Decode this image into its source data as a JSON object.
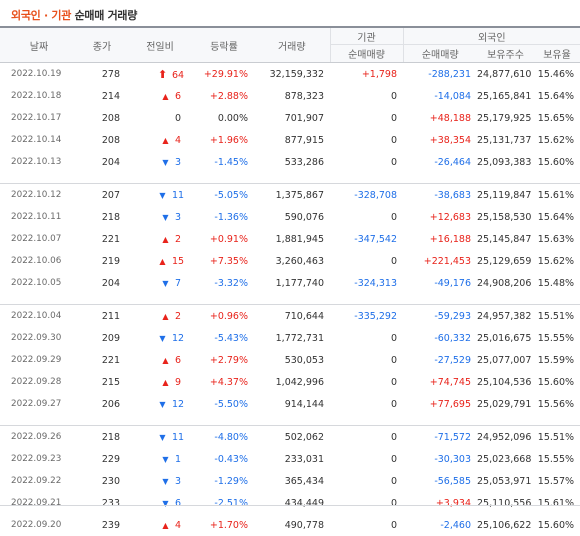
{
  "title": {
    "part1": "외국인",
    "dot": "·",
    "part2": "기관",
    "part3": "순매매 거래량"
  },
  "headers": {
    "date": "날짜",
    "close": "종가",
    "change": "전일비",
    "rate": "등락률",
    "volume": "거래량",
    "inst_group": "기관",
    "foreign_group": "외국인",
    "inst_net": "순매매량",
    "foreign_net": "순매매량",
    "foreign_holdings": "보유주수",
    "foreign_ratio": "보유율"
  },
  "colors": {
    "up": "#e8231b",
    "down": "#1f6fe8",
    "accent": "#e8501b"
  },
  "groups": [
    [
      {
        "date": "2022.10.19",
        "close": "278",
        "dir": "upper",
        "change": "64",
        "rate": "+29.91%",
        "volume": "32,159,332",
        "inst": "+1,798",
        "foreign": "-288,231",
        "holdings": "24,877,610",
        "ratio": "15.46%"
      },
      {
        "date": "2022.10.18",
        "close": "214",
        "dir": "up",
        "change": "6",
        "rate": "+2.88%",
        "volume": "878,323",
        "inst": "0",
        "foreign": "-14,084",
        "holdings": "25,165,841",
        "ratio": "15.64%"
      },
      {
        "date": "2022.10.17",
        "close": "208",
        "dir": "flat",
        "change": "0",
        "rate": "0.00%",
        "volume": "701,907",
        "inst": "0",
        "foreign": "+48,188",
        "holdings": "25,179,925",
        "ratio": "15.65%"
      },
      {
        "date": "2022.10.14",
        "close": "208",
        "dir": "up",
        "change": "4",
        "rate": "+1.96%",
        "volume": "877,915",
        "inst": "0",
        "foreign": "+38,354",
        "holdings": "25,131,737",
        "ratio": "15.62%"
      },
      {
        "date": "2022.10.13",
        "close": "204",
        "dir": "down",
        "change": "3",
        "rate": "-1.45%",
        "volume": "533,286",
        "inst": "0",
        "foreign": "-26,464",
        "holdings": "25,093,383",
        "ratio": "15.60%"
      }
    ],
    [
      {
        "date": "2022.10.12",
        "close": "207",
        "dir": "down",
        "change": "11",
        "rate": "-5.05%",
        "volume": "1,375,867",
        "inst": "-328,708",
        "foreign": "-38,683",
        "holdings": "25,119,847",
        "ratio": "15.61%"
      },
      {
        "date": "2022.10.11",
        "close": "218",
        "dir": "down",
        "change": "3",
        "rate": "-1.36%",
        "volume": "590,076",
        "inst": "0",
        "foreign": "+12,683",
        "holdings": "25,158,530",
        "ratio": "15.64%"
      },
      {
        "date": "2022.10.07",
        "close": "221",
        "dir": "up",
        "change": "2",
        "rate": "+0.91%",
        "volume": "1,881,945",
        "inst": "-347,542",
        "foreign": "+16,188",
        "holdings": "25,145,847",
        "ratio": "15.63%"
      },
      {
        "date": "2022.10.06",
        "close": "219",
        "dir": "up",
        "change": "15",
        "rate": "+7.35%",
        "volume": "3,260,463",
        "inst": "0",
        "foreign": "+221,453",
        "holdings": "25,129,659",
        "ratio": "15.62%"
      },
      {
        "date": "2022.10.05",
        "close": "204",
        "dir": "down",
        "change": "7",
        "rate": "-3.32%",
        "volume": "1,177,740",
        "inst": "-324,313",
        "foreign": "-49,176",
        "holdings": "24,908,206",
        "ratio": "15.48%"
      }
    ],
    [
      {
        "date": "2022.10.04",
        "close": "211",
        "dir": "up",
        "change": "2",
        "rate": "+0.96%",
        "volume": "710,644",
        "inst": "-335,292",
        "foreign": "-59,293",
        "holdings": "24,957,382",
        "ratio": "15.51%"
      },
      {
        "date": "2022.09.30",
        "close": "209",
        "dir": "down",
        "change": "12",
        "rate": "-5.43%",
        "volume": "1,772,731",
        "inst": "0",
        "foreign": "-60,332",
        "holdings": "25,016,675",
        "ratio": "15.55%"
      },
      {
        "date": "2022.09.29",
        "close": "221",
        "dir": "up",
        "change": "6",
        "rate": "+2.79%",
        "volume": "530,053",
        "inst": "0",
        "foreign": "-27,529",
        "holdings": "25,077,007",
        "ratio": "15.59%"
      },
      {
        "date": "2022.09.28",
        "close": "215",
        "dir": "up",
        "change": "9",
        "rate": "+4.37%",
        "volume": "1,042,996",
        "inst": "0",
        "foreign": "+74,745",
        "holdings": "25,104,536",
        "ratio": "15.60%"
      },
      {
        "date": "2022.09.27",
        "close": "206",
        "dir": "down",
        "change": "12",
        "rate": "-5.50%",
        "volume": "914,144",
        "inst": "0",
        "foreign": "+77,695",
        "holdings": "25,029,791",
        "ratio": "15.56%"
      }
    ],
    [
      {
        "date": "2022.09.26",
        "close": "218",
        "dir": "down",
        "change": "11",
        "rate": "-4.80%",
        "volume": "502,062",
        "inst": "0",
        "foreign": "-71,572",
        "holdings": "24,952,096",
        "ratio": "15.51%"
      },
      {
        "date": "2022.09.23",
        "close": "229",
        "dir": "down",
        "change": "1",
        "rate": "-0.43%",
        "volume": "233,031",
        "inst": "0",
        "foreign": "-30,303",
        "holdings": "25,023,668",
        "ratio": "15.55%"
      },
      {
        "date": "2022.09.22",
        "close": "230",
        "dir": "down",
        "change": "3",
        "rate": "-1.29%",
        "volume": "365,434",
        "inst": "0",
        "foreign": "-56,585",
        "holdings": "25,053,971",
        "ratio": "15.57%"
      },
      {
        "date": "2022.09.21",
        "close": "233",
        "dir": "down",
        "change": "6",
        "rate": "-2.51%",
        "volume": "434,449",
        "inst": "0",
        "foreign": "+3,934",
        "holdings": "25,110,556",
        "ratio": "15.61%"
      },
      {
        "date": "2022.09.20",
        "close": "239",
        "dir": "up",
        "change": "4",
        "rate": "+1.70%",
        "volume": "490,778",
        "inst": "0",
        "foreign": "-2,460",
        "holdings": "25,106,622",
        "ratio": "15.60%"
      }
    ]
  ]
}
